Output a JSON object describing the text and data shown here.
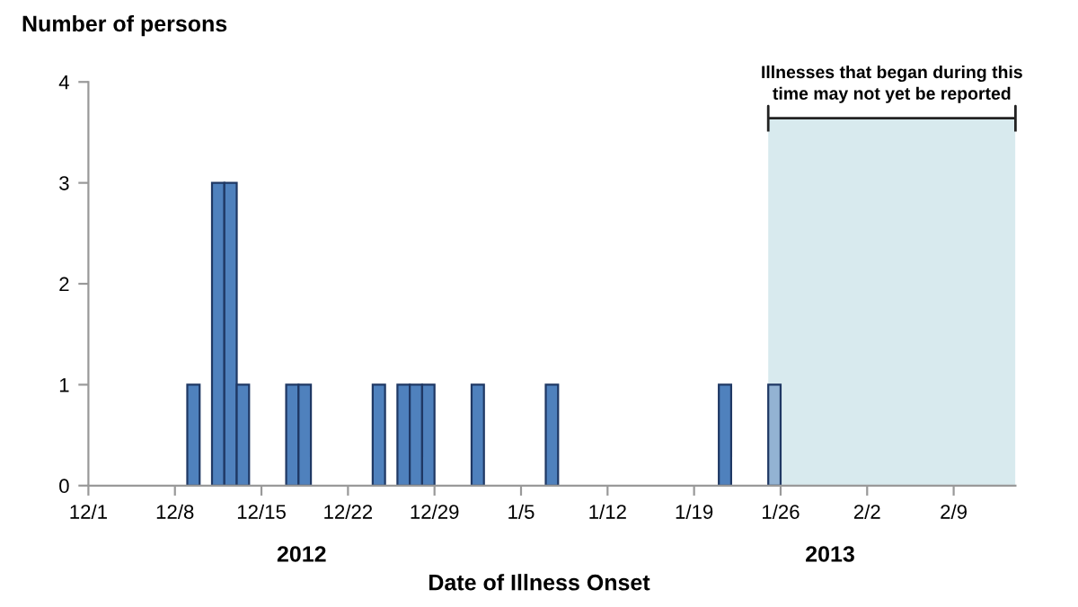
{
  "chart_data": {
    "type": "bar",
    "ylabel": "Number of persons",
    "xlabel": "Date of Illness Onset",
    "x": [
      "2012-12-09T12:00",
      "2012-12-11T12:00",
      "2012-12-12T12:00",
      "2012-12-13T12:00",
      "2012-12-17T12:00",
      "2012-12-18T12:00",
      "2012-12-24T12:00",
      "2012-12-26T12:00",
      "2012-12-27T12:00",
      "2012-12-28T12:00",
      "2013-01-01T12:00",
      "2013-01-07T12:00",
      "2013-01-21T12:00",
      "2013-01-25T12:00"
    ],
    "values": [
      1,
      3,
      3,
      1,
      1,
      1,
      1,
      1,
      1,
      1,
      1,
      1,
      1,
      1
    ],
    "colors": [
      "#4f81bd",
      "#4f81bd",
      "#4f81bd",
      "#4f81bd",
      "#4f81bd",
      "#4f81bd",
      "#4f81bd",
      "#4f81bd",
      "#4f81bd",
      "#4f81bd",
      "#4f81bd",
      "#4f81bd",
      "#4f81bd",
      "#93b3d3"
    ],
    "xlim": [
      "2012-12-01",
      "2013-02-14"
    ],
    "xticks": [
      {
        "value": "2012-12-01",
        "label": "12/1"
      },
      {
        "value": "2012-12-08",
        "label": "12/8"
      },
      {
        "value": "2012-12-15",
        "label": "12/15"
      },
      {
        "value": "2012-12-22",
        "label": "12/22"
      },
      {
        "value": "2012-12-29",
        "label": "12/29"
      },
      {
        "value": "2013-01-05",
        "label": "1/5"
      },
      {
        "value": "2013-01-12",
        "label": "1/12"
      },
      {
        "value": "2013-01-19",
        "label": "1/19"
      },
      {
        "value": "2013-01-26",
        "label": "1/26"
      },
      {
        "value": "2013-02-02",
        "label": "2/2"
      },
      {
        "value": "2013-02-09",
        "label": "2/9"
      }
    ],
    "ylim": [
      0,
      4
    ],
    "yticks": [
      0,
      1,
      2,
      3,
      4
    ],
    "bands": [
      {
        "axis": "x",
        "from": "2013-01-25",
        "to": "2013-02-14",
        "label": "Illnesses that began during this\ntime may not yet be reported",
        "color": "#d8eaee"
      }
    ],
    "annotations": [
      "2012",
      "2013"
    ],
    "grid": false
  }
}
